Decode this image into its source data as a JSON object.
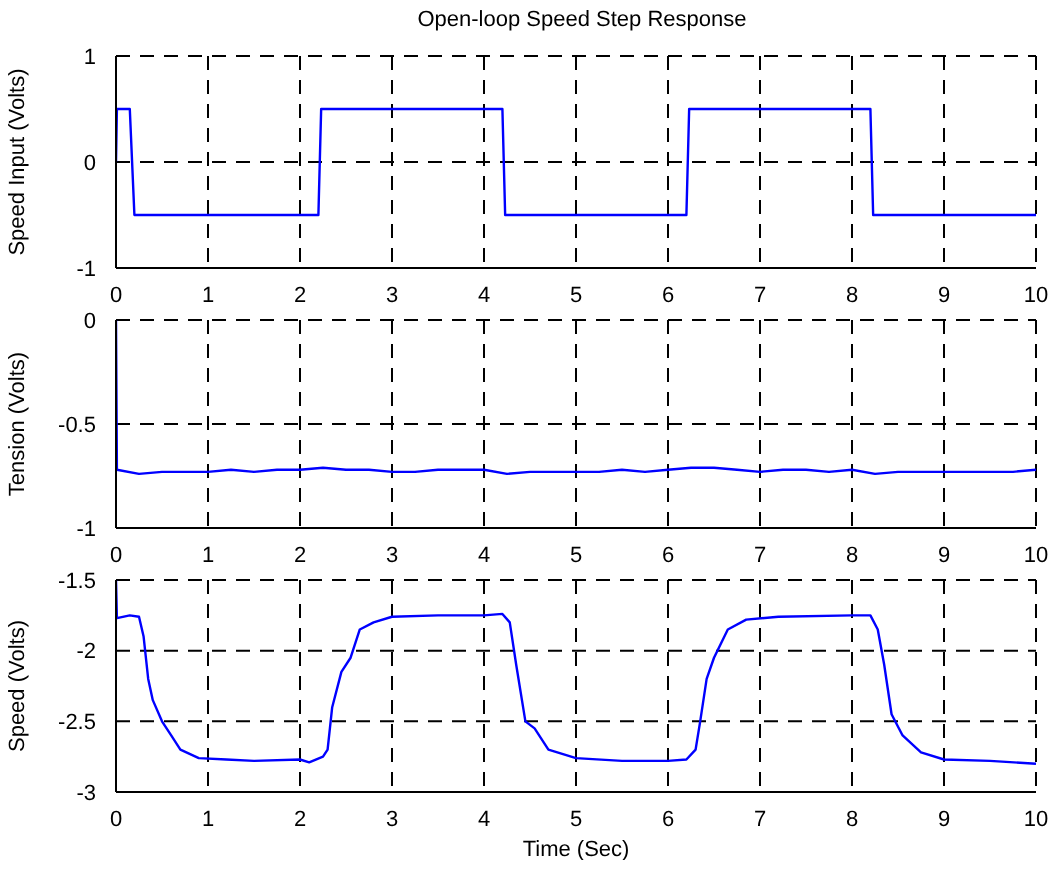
{
  "chart_data": [
    {
      "type": "line",
      "title": "Open-loop Speed Step Response",
      "ylabel": "Speed Input (Volts)",
      "xlim": [
        0,
        10
      ],
      "xticks": [
        0,
        1,
        2,
        3,
        4,
        5,
        6,
        7,
        8,
        9,
        10
      ],
      "ylim": [
        -1,
        1
      ],
      "yticks": [
        -1,
        0,
        1
      ],
      "grid": true,
      "line_style": "solid",
      "series": [
        {
          "color": "#0000ff",
          "x": [
            0,
            0.01,
            0.15,
            0.2,
            2.2,
            2.23,
            4.2,
            4.23,
            6.2,
            6.23,
            8.2,
            8.23,
            10
          ],
          "values": [
            0,
            0.5,
            0.5,
            -0.5,
            -0.5,
            0.5,
            0.5,
            -0.5,
            -0.5,
            0.5,
            0.5,
            -0.5,
            -0.5
          ]
        }
      ]
    },
    {
      "type": "line",
      "ylabel": "Tension (Volts)",
      "xlim": [
        0,
        10
      ],
      "xticks": [
        0,
        1,
        2,
        3,
        4,
        5,
        6,
        7,
        8,
        9,
        10
      ],
      "ylim": [
        -1,
        0
      ],
      "yticks": [
        -1,
        -0.5,
        0
      ],
      "grid": true,
      "line_style": "solid",
      "series": [
        {
          "color": "#0000ff",
          "x": [
            0,
            0.01,
            0.25,
            0.5,
            0.75,
            1,
            1.25,
            1.5,
            1.75,
            2,
            2.25,
            2.5,
            2.75,
            3,
            3.25,
            3.5,
            3.75,
            4,
            4.25,
            4.5,
            4.75,
            5,
            5.25,
            5.5,
            5.75,
            6,
            6.25,
            6.5,
            6.75,
            7,
            7.25,
            7.5,
            7.75,
            8,
            8.25,
            8.5,
            8.75,
            9,
            9.25,
            9.5,
            9.75,
            10
          ],
          "values": [
            0,
            -0.72,
            -0.74,
            -0.73,
            -0.73,
            -0.73,
            -0.72,
            -0.73,
            -0.72,
            -0.72,
            -0.71,
            -0.72,
            -0.72,
            -0.73,
            -0.73,
            -0.72,
            -0.72,
            -0.72,
            -0.74,
            -0.73,
            -0.73,
            -0.73,
            -0.73,
            -0.72,
            -0.73,
            -0.72,
            -0.71,
            -0.71,
            -0.72,
            -0.73,
            -0.72,
            -0.72,
            -0.73,
            -0.72,
            -0.74,
            -0.73,
            -0.73,
            -0.73,
            -0.73,
            -0.73,
            -0.73,
            -0.72
          ]
        }
      ]
    },
    {
      "type": "line",
      "ylabel": "Speed (Volts)",
      "xlabel": "Time (Sec)",
      "xlim": [
        0,
        10
      ],
      "xticks": [
        0,
        1,
        2,
        3,
        4,
        5,
        6,
        7,
        8,
        9,
        10
      ],
      "ylim": [
        -3,
        -1.5
      ],
      "yticks": [
        -3,
        -2.5,
        -2,
        -1.5
      ],
      "grid": true,
      "line_style": "solid",
      "series": [
        {
          "color": "#0000ff",
          "x": [
            0,
            0.01,
            0.15,
            0.25,
            0.3,
            0.35,
            0.4,
            0.5,
            0.6,
            0.7,
            0.9,
            1.2,
            1.5,
            2,
            2.1,
            2.25,
            2.3,
            2.35,
            2.45,
            2.55,
            2.65,
            2.8,
            3,
            3.5,
            4,
            4.2,
            4.28,
            4.35,
            4.45,
            4.55,
            4.7,
            5,
            5.5,
            6,
            6.2,
            6.3,
            6.35,
            6.42,
            6.5,
            6.65,
            6.85,
            7.2,
            8,
            8.2,
            8.28,
            8.35,
            8.43,
            8.55,
            8.75,
            9,
            9.5,
            10
          ],
          "values": [
            -1.5,
            -1.77,
            -1.75,
            -1.76,
            -1.9,
            -2.2,
            -2.35,
            -2.5,
            -2.6,
            -2.7,
            -2.76,
            -2.77,
            -2.78,
            -2.77,
            -2.79,
            -2.75,
            -2.7,
            -2.4,
            -2.15,
            -2.05,
            -1.85,
            -1.8,
            -1.76,
            -1.75,
            -1.75,
            -1.74,
            -1.8,
            -2.1,
            -2.5,
            -2.55,
            -2.7,
            -2.76,
            -2.78,
            -2.78,
            -2.77,
            -2.7,
            -2.5,
            -2.2,
            -2.05,
            -1.85,
            -1.78,
            -1.76,
            -1.75,
            -1.75,
            -1.85,
            -2.1,
            -2.45,
            -2.6,
            -2.72,
            -2.77,
            -2.78,
            -2.8
          ]
        }
      ]
    }
  ]
}
